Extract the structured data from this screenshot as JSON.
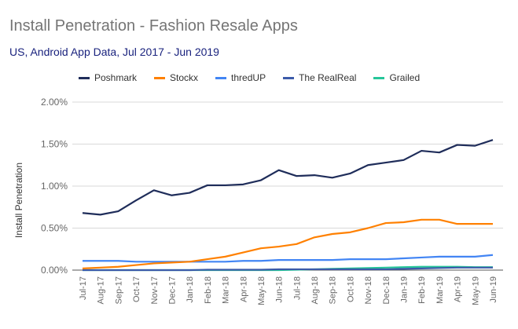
{
  "chart_data": {
    "type": "line",
    "title": "Install Penetration - Fashion Resale Apps",
    "subtitle": "US, Android App Data, Jul 2017 - Jun 2019",
    "ylabel": "Install Penetration",
    "xlabel": "",
    "ylim": [
      0,
      2.0
    ],
    "yticks": [
      "0.00%",
      "0.50%",
      "1.00%",
      "1.50%",
      "2.00%"
    ],
    "ytick_values": [
      0,
      0.5,
      1.0,
      1.5,
      2.0
    ],
    "grid": true,
    "legend_position": "top",
    "categories": [
      "Jul-17",
      "Aug-17",
      "Sep-17",
      "Oct-17",
      "Nov-17",
      "Dec-17",
      "Jan-18",
      "Feb-18",
      "Mar-18",
      "Apr-18",
      "May-18",
      "Jun-18",
      "Jul-18",
      "Aug-18",
      "Sep-18",
      "Oct-18",
      "Nov-18",
      "Dec-18",
      "Jan-19",
      "Feb-19",
      "Mar-19",
      "Apr-19",
      "May-19",
      "Jun-19"
    ],
    "series": [
      {
        "name": "Poshmark",
        "color": "#1f2d5a",
        "values": [
          0.68,
          0.66,
          0.7,
          0.83,
          0.95,
          0.89,
          0.92,
          1.01,
          1.01,
          1.02,
          1.07,
          1.19,
          1.12,
          1.13,
          1.1,
          1.15,
          1.25,
          1.28,
          1.31,
          1.42,
          1.4,
          1.49,
          1.48,
          1.55
        ]
      },
      {
        "name": "Stockx",
        "color": "#ff8000",
        "values": [
          0.02,
          0.03,
          0.04,
          0.06,
          0.08,
          0.09,
          0.1,
          0.13,
          0.16,
          0.21,
          0.26,
          0.28,
          0.31,
          0.39,
          0.43,
          0.45,
          0.5,
          0.56,
          0.57,
          0.6,
          0.6,
          0.55,
          0.55,
          0.55
        ]
      },
      {
        "name": "thredUP",
        "color": "#4285f4",
        "values": [
          0.11,
          0.11,
          0.11,
          0.1,
          0.1,
          0.1,
          0.1,
          0.1,
          0.1,
          0.11,
          0.11,
          0.12,
          0.12,
          0.12,
          0.12,
          0.13,
          0.13,
          0.13,
          0.14,
          0.15,
          0.16,
          0.16,
          0.16,
          0.18
        ]
      },
      {
        "name": "The RealReal",
        "color": "#3c5ba9",
        "values": [
          0.0,
          0.0,
          0.0,
          0.0,
          0.0,
          0.0,
          0.0,
          0.005,
          0.005,
          0.005,
          0.005,
          0.01,
          0.01,
          0.01,
          0.01,
          0.01,
          0.01,
          0.01,
          0.015,
          0.02,
          0.025,
          0.03,
          0.03,
          0.03
        ]
      },
      {
        "name": "Grailed",
        "color": "#26c699",
        "values": [
          0.0,
          0.0,
          0.0,
          0.0,
          0.0,
          0.0,
          0.0,
          0.0,
          0.0,
          0.0,
          0.0,
          0.0,
          0.005,
          0.01,
          0.015,
          0.02,
          0.025,
          0.03,
          0.035,
          0.04,
          0.04,
          0.04,
          0.035,
          0.035
        ]
      }
    ]
  }
}
